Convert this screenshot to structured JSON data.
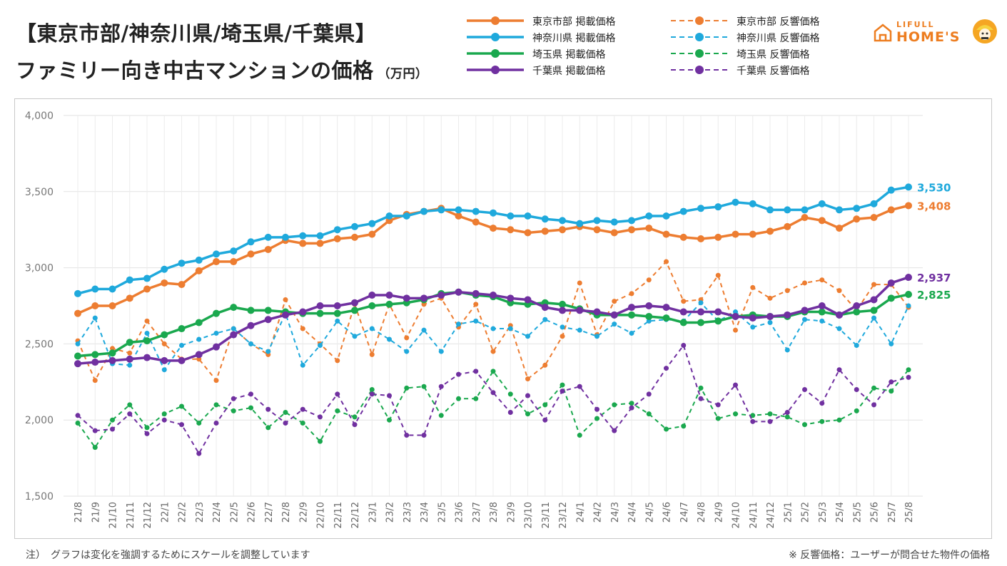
{
  "title": {
    "line1": "【東京市部/神奈川県/埼玉県/千葉県】",
    "line2": "ファミリー向き中古マンションの価格",
    "unit": "（万円）"
  },
  "logo": {
    "sub": "LIFULL",
    "main": "HOME'S",
    "icon": "house-logo-icon"
  },
  "notes": {
    "left": "注）　グラフは変化を強調するためにスケールを調整しています",
    "right": "※ 反響価格：ユーザーが問合せた物件の価格"
  },
  "chart_data": {
    "type": "line",
    "title": "【東京市部/神奈川県/埼玉県/千葉県】ファミリー向き中古マンションの価格",
    "ylabel": "（万円）",
    "ylim": [
      1500,
      4000
    ],
    "yticks": [
      1500,
      2000,
      2500,
      3000,
      3500,
      4000
    ],
    "ytick_labels": [
      "1,500",
      "2,000",
      "2,500",
      "3,000",
      "3,500",
      "4,000"
    ],
    "grid": true,
    "legend_position": "top",
    "x": [
      "21/8",
      "21/9",
      "21/10",
      "21/11",
      "21/12",
      "22/1",
      "22/2",
      "22/3",
      "22/4",
      "22/5",
      "22/6",
      "22/7",
      "22/8",
      "22/9",
      "22/10",
      "22/11",
      "22/12",
      "23/1",
      "23/2",
      "23/3",
      "23/4",
      "23/5",
      "23/6",
      "23/7",
      "23/8",
      "23/9",
      "23/10",
      "23/11",
      "23/12",
      "24/1",
      "24/2",
      "24/3",
      "24/4",
      "24/5",
      "24/6",
      "24/7",
      "24/8",
      "24/9",
      "24/10",
      "24/11",
      "24/12",
      "25/1",
      "25/2",
      "25/3",
      "25/4",
      "25/5",
      "25/6",
      "25/7",
      "25/8"
    ],
    "series": [
      {
        "name": "東京市部 反響価格",
        "color": "#ed7d31",
        "style": "dashed",
        "values": [
          2520,
          2260,
          2470,
          2440,
          2650,
          2500,
          2400,
          2400,
          2260,
          2600,
          2500,
          2430,
          2790,
          2600,
          2500,
          2390,
          2760,
          2430,
          2760,
          2540,
          2760,
          2800,
          2610,
          2760,
          2450,
          2620,
          2270,
          2360,
          2550,
          2900,
          2560,
          2780,
          2830,
          2920,
          3040,
          2780,
          2790,
          2950,
          2590,
          2870,
          2800,
          2850,
          2900,
          2920,
          2850,
          2720,
          2890,
          2890,
          2740
        ]
      },
      {
        "name": "神奈川県 反響価格",
        "color": "#1fa9dc",
        "style": "dashed",
        "values": [
          2500,
          2670,
          2370,
          2360,
          2570,
          2330,
          2490,
          2530,
          2570,
          2600,
          2500,
          2450,
          2700,
          2360,
          2490,
          2650,
          2550,
          2600,
          2530,
          2450,
          2590,
          2450,
          2630,
          2650,
          2600,
          2600,
          2550,
          2660,
          2610,
          2590,
          2550,
          2630,
          2570,
          2650,
          2660,
          2650,
          2770,
          2650,
          2710,
          2610,
          2640,
          2460,
          2660,
          2650,
          2600,
          2490,
          2670,
          2500,
          2750
        ]
      },
      {
        "name": "埼玉県 反響価格",
        "color": "#1aa84e",
        "style": "dashed",
        "values": [
          1980,
          1820,
          2000,
          2100,
          1950,
          2040,
          2090,
          1980,
          2100,
          2060,
          2080,
          1950,
          2050,
          1980,
          1860,
          2060,
          2020,
          2200,
          2000,
          2210,
          2220,
          2030,
          2140,
          2140,
          2320,
          2170,
          2040,
          2100,
          2230,
          1900,
          2010,
          2100,
          2110,
          2040,
          1940,
          1960,
          2210,
          2010,
          2040,
          2030,
          2040,
          2020,
          1970,
          1990,
          2000,
          2060,
          2210,
          2190,
          2330
        ]
      },
      {
        "name": "千葉県 反響価格",
        "color": "#7030a0",
        "style": "dashed",
        "values": [
          2030,
          1930,
          1940,
          2040,
          1910,
          2000,
          1970,
          1780,
          1980,
          2140,
          2170,
          2070,
          1980,
          2070,
          2020,
          2170,
          1970,
          2170,
          2160,
          1900,
          1900,
          2220,
          2300,
          2320,
          2180,
          2050,
          2160,
          2000,
          2190,
          2220,
          2070,
          1930,
          2080,
          2170,
          2340,
          2490,
          2140,
          2100,
          2230,
          1990,
          1990,
          2050,
          2200,
          2110,
          2330,
          2200,
          2100,
          2250,
          2280
        ]
      },
      {
        "name": "東京市部 掲載価格",
        "color": "#ed7d31",
        "style": "solid",
        "values": [
          2700,
          2750,
          2750,
          2800,
          2860,
          2900,
          2890,
          2980,
          3040,
          3040,
          3090,
          3120,
          3180,
          3160,
          3160,
          3190,
          3200,
          3220,
          3310,
          3350,
          3370,
          3390,
          3340,
          3300,
          3260,
          3250,
          3230,
          3240,
          3250,
          3270,
          3250,
          3230,
          3250,
          3260,
          3220,
          3200,
          3190,
          3200,
          3220,
          3220,
          3240,
          3270,
          3330,
          3310,
          3260,
          3320,
          3330,
          3380,
          3408
        ]
      },
      {
        "name": "神奈川県 掲載価格",
        "color": "#1fa9dc",
        "style": "solid",
        "values": [
          2830,
          2860,
          2860,
          2920,
          2930,
          2990,
          3030,
          3050,
          3090,
          3110,
          3170,
          3200,
          3200,
          3210,
          3210,
          3250,
          3270,
          3290,
          3340,
          3340,
          3370,
          3380,
          3380,
          3370,
          3360,
          3340,
          3340,
          3320,
          3310,
          3290,
          3310,
          3300,
          3310,
          3340,
          3340,
          3370,
          3390,
          3400,
          3430,
          3420,
          3380,
          3380,
          3380,
          3420,
          3380,
          3390,
          3420,
          3510,
          3530
        ]
      },
      {
        "name": "埼玉県 掲載価格",
        "color": "#1aa84e",
        "style": "solid",
        "values": [
          2420,
          2430,
          2440,
          2510,
          2520,
          2560,
          2600,
          2640,
          2700,
          2740,
          2720,
          2720,
          2710,
          2700,
          2700,
          2700,
          2720,
          2750,
          2760,
          2770,
          2790,
          2830,
          2840,
          2820,
          2810,
          2770,
          2760,
          2770,
          2760,
          2730,
          2690,
          2690,
          2690,
          2680,
          2670,
          2640,
          2640,
          2650,
          2680,
          2690,
          2680,
          2680,
          2710,
          2710,
          2690,
          2710,
          2720,
          2800,
          2825
        ]
      },
      {
        "name": "千葉県 掲載価格",
        "color": "#7030a0",
        "style": "solid",
        "values": [
          2370,
          2380,
          2390,
          2400,
          2410,
          2390,
          2390,
          2430,
          2480,
          2560,
          2620,
          2660,
          2690,
          2710,
          2750,
          2750,
          2770,
          2820,
          2820,
          2800,
          2800,
          2820,
          2840,
          2830,
          2820,
          2800,
          2790,
          2740,
          2720,
          2720,
          2710,
          2690,
          2740,
          2750,
          2740,
          2710,
          2710,
          2710,
          2680,
          2670,
          2680,
          2690,
          2720,
          2750,
          2690,
          2750,
          2790,
          2900,
          2937
        ]
      }
    ],
    "end_labels": [
      {
        "text": "3,530",
        "color": "#1fa9dc",
        "value": 3530
      },
      {
        "text": "3,408",
        "color": "#ed7d31",
        "value": 3408
      },
      {
        "text": "2,937",
        "color": "#7030a0",
        "value": 2937
      },
      {
        "text": "2,825",
        "color": "#1aa84e",
        "value": 2825
      }
    ],
    "legend": [
      {
        "label": "東京市部 掲載価格",
        "color": "#ed7d31",
        "style": "solid"
      },
      {
        "label": "神奈川県 掲載価格",
        "color": "#1fa9dc",
        "style": "solid"
      },
      {
        "label": "埼玉県 掲載価格",
        "color": "#1aa84e",
        "style": "solid"
      },
      {
        "label": "千葉県 掲載価格",
        "color": "#7030a0",
        "style": "solid"
      },
      {
        "label": "東京市部 反響価格",
        "color": "#ed7d31",
        "style": "dashed"
      },
      {
        "label": "神奈川県 反響価格",
        "color": "#1fa9dc",
        "style": "dashed"
      },
      {
        "label": "埼玉県 反響価格",
        "color": "#1aa84e",
        "style": "dashed"
      },
      {
        "label": "千葉県 反響価格",
        "color": "#7030a0",
        "style": "dashed"
      }
    ]
  }
}
